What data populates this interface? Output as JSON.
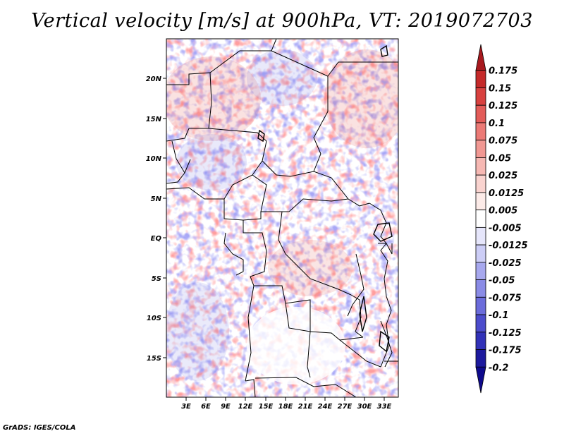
{
  "title": "Vertical velocity [m/s] at 900hPa, VT: 2019072703",
  "credit": "GrADS: IGES/COLA",
  "map": {
    "lon_range": [
      0,
      35
    ],
    "lat_range": [
      -20,
      25
    ],
    "lon_ticks": [
      "3E",
      "6E",
      "9E",
      "12E",
      "15E",
      "18E",
      "21E",
      "24E",
      "27E",
      "30E",
      "33E"
    ],
    "lat_ticks": [
      "20N",
      "15N",
      "10N",
      "5N",
      "EQ",
      "5S",
      "10S",
      "15S"
    ],
    "variable": "vertical velocity",
    "units": "m/s",
    "level": "900hPa"
  },
  "colorbar": {
    "labels": [
      "0.175",
      "0.15",
      "0.125",
      "0.1",
      "0.075",
      "0.05",
      "0.025",
      "0.0125",
      "0.005",
      "-0.005",
      "-0.0125",
      "-0.025",
      "-0.05",
      "-0.075",
      "-0.1",
      "-0.125",
      "-0.175",
      "-0.2"
    ],
    "colors": [
      "#a8191e",
      "#c52a2a",
      "#d8413f",
      "#e35c59",
      "#ec7a76",
      "#f19893",
      "#f6b8b3",
      "#f9d3cf",
      "#fcebe8",
      "#ffffff",
      "#e6e6fb",
      "#cccdf6",
      "#a7a8ee",
      "#8a8be6",
      "#6b6cdb",
      "#4c4ccc",
      "#3232b8",
      "#1d1a9e",
      "#0e0a8c"
    ]
  }
}
